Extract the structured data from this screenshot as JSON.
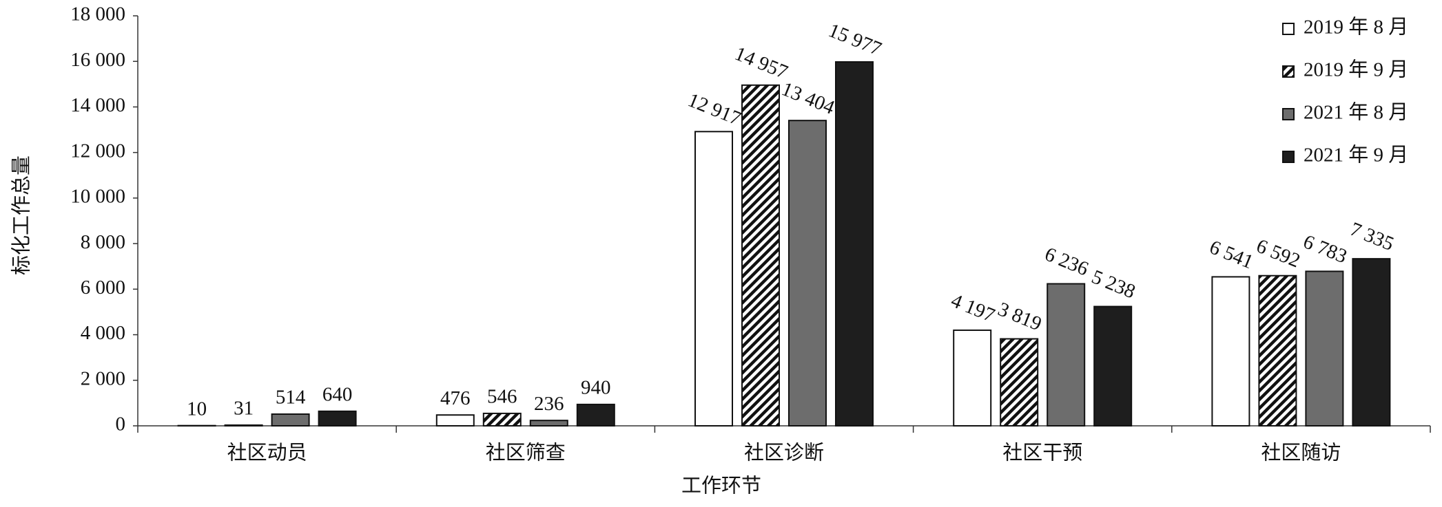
{
  "chart_data": {
    "type": "bar",
    "x_label": "工作环节",
    "y_label": "标化工作总量",
    "categories": [
      "社区动员",
      "社区筛查",
      "社区诊断",
      "社区干预",
      "社区随访"
    ],
    "series": [
      {
        "name": "2019 年 8 月",
        "color": "#ffffff",
        "values": [
          10,
          476,
          12917,
          4197,
          6541
        ],
        "value_labels": [
          "10",
          "476",
          "12 917",
          "4 197",
          "6 541"
        ]
      },
      {
        "name": "2019 年 9 月",
        "color": "#ffffff",
        "hatch": true,
        "values": [
          31,
          546,
          14957,
          3819,
          6592
        ],
        "value_labels": [
          "31",
          "546",
          "14 957",
          "3 819",
          "6 592"
        ]
      },
      {
        "name": "2021 年 8 月",
        "color": "#6d6d6d",
        "values": [
          514,
          236,
          13404,
          6236,
          6783
        ],
        "value_labels": [
          "514",
          "236",
          "13 404",
          "6 236",
          "6 783"
        ]
      },
      {
        "name": "2021 年 9 月",
        "color": "#1e1e1e",
        "values": [
          640,
          940,
          15977,
          5238,
          7335
        ],
        "value_labels": [
          "640",
          "940",
          "15 977",
          "5 238",
          "7 335"
        ]
      }
    ],
    "ylim": [
      0,
      18000
    ],
    "yticks": [
      0,
      {
        "value": 2000,
        "label": "2 000"
      },
      {
        "value": 4000,
        "label": "4 000"
      },
      {
        "value": 6000,
        "label": "6 000"
      },
      {
        "value": 8000,
        "label": "8 000"
      },
      {
        "value": 10000,
        "label": "10 000"
      },
      {
        "value": 12000,
        "label": "12 000"
      },
      {
        "value": 14000,
        "label": "14 000"
      },
      {
        "value": 16000,
        "label": "16 000"
      },
      {
        "value": 18000,
        "label": "18 000"
      }
    ],
    "legend": "upper right",
    "grid": false
  }
}
